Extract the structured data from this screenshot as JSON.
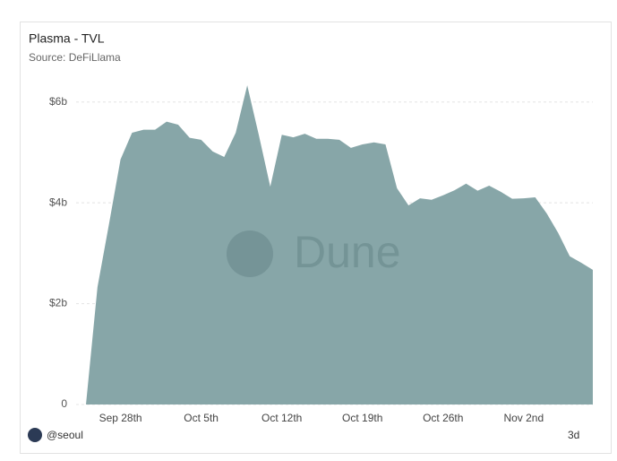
{
  "chart_data": {
    "type": "area",
    "title": "Plasma - TVL",
    "subtitle": "Source: DeFiLlama",
    "categories": [
      null,
      null,
      null,
      "Sep 28th",
      null,
      null,
      null,
      null,
      null,
      null,
      "Oct 5th",
      null,
      null,
      null,
      null,
      null,
      null,
      "Oct 12th",
      null,
      null,
      null,
      null,
      null,
      null,
      "Oct 19th",
      null,
      null,
      null,
      null,
      null,
      null,
      "Oct 26th",
      null,
      null,
      null,
      null,
      null,
      null,
      "Nov 2nd",
      null,
      null,
      null,
      null,
      null,
      null
    ],
    "values": [
      0,
      2.33,
      3.58,
      4.86,
      5.39,
      5.45,
      5.45,
      5.61,
      5.55,
      5.29,
      5.25,
      5.02,
      4.91,
      5.39,
      6.33,
      5.35,
      4.32,
      5.35,
      5.3,
      5.37,
      5.27,
      5.27,
      5.25,
      5.09,
      5.16,
      5.2,
      5.16,
      4.29,
      3.95,
      4.09,
      4.06,
      4.15,
      4.25,
      4.38,
      4.24,
      4.34,
      4.22,
      4.08,
      4.09,
      4.11,
      3.79,
      3.4,
      2.94,
      2.81,
      2.67
    ],
    "color": "#87a6a8",
    "ylim": [
      0,
      6.6
    ],
    "yticks": [
      0,
      {
        "value": 2,
        "label": "$2b"
      },
      {
        "value": 4,
        "label": "$4b"
      },
      {
        "value": 6,
        "label": "$6b"
      }
    ],
    "grid": true
  },
  "footer": {
    "user": "@seoul",
    "badge": "3d"
  },
  "watermark": "Dune"
}
